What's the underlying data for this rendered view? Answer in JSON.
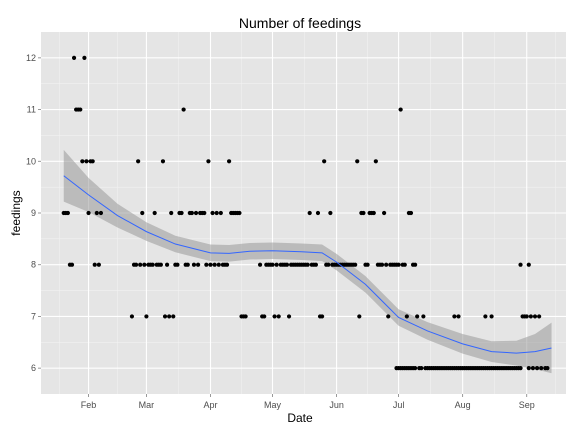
{
  "chart_data": {
    "type": "scatter",
    "title": "Number of feedings",
    "xlabel": "Date",
    "ylabel": "feedings",
    "x_type": "date",
    "xlim": [
      "2014-01-09",
      "2014-09-20"
    ],
    "ylim": [
      5.5,
      12.5
    ],
    "grid": true,
    "x_ticks": [
      {
        "date": "2014-02-01",
        "label": "Feb"
      },
      {
        "date": "2014-03-01",
        "label": "Mar"
      },
      {
        "date": "2014-04-01",
        "label": "Apr"
      },
      {
        "date": "2014-05-01",
        "label": "May"
      },
      {
        "date": "2014-06-01",
        "label": "Jun"
      },
      {
        "date": "2014-07-01",
        "label": "Jul"
      },
      {
        "date": "2014-08-01",
        "label": "Aug"
      },
      {
        "date": "2014-09-01",
        "label": "Sep"
      }
    ],
    "y_ticks": [
      {
        "value": 6,
        "label": "6"
      },
      {
        "value": 7,
        "label": "7"
      },
      {
        "value": 8,
        "label": "8"
      },
      {
        "value": 9,
        "label": "9"
      },
      {
        "value": 10,
        "label": "10"
      },
      {
        "value": 11,
        "label": "11"
      },
      {
        "value": 12,
        "label": "12"
      }
    ],
    "point_color": "#000000",
    "smooth_color": "#3366ff",
    "ribbon_color": "#999999",
    "points": [
      {
        "x": "2014-01-20",
        "y": 9
      },
      {
        "x": "2014-01-21",
        "y": 9
      },
      {
        "x": "2014-01-22",
        "y": 9
      },
      {
        "x": "2014-01-23",
        "y": 8
      },
      {
        "x": "2014-01-24",
        "y": 8
      },
      {
        "x": "2014-01-25",
        "y": 12
      },
      {
        "x": "2014-01-26",
        "y": 11
      },
      {
        "x": "2014-01-27",
        "y": 11
      },
      {
        "x": "2014-01-28",
        "y": 11
      },
      {
        "x": "2014-01-29",
        "y": 10
      },
      {
        "x": "2014-01-30",
        "y": 12
      },
      {
        "x": "2014-01-31",
        "y": 10
      },
      {
        "x": "2014-02-01",
        "y": 9
      },
      {
        "x": "2014-02-02",
        "y": 10
      },
      {
        "x": "2014-02-03",
        "y": 10
      },
      {
        "x": "2014-02-04",
        "y": 8
      },
      {
        "x": "2014-02-05",
        "y": 9
      },
      {
        "x": "2014-02-06",
        "y": 8
      },
      {
        "x": "2014-02-07",
        "y": 9
      },
      {
        "x": "2014-02-22",
        "y": 7
      },
      {
        "x": "2014-02-23",
        "y": 8
      },
      {
        "x": "2014-02-24",
        "y": 8
      },
      {
        "x": "2014-02-25",
        "y": 10
      },
      {
        "x": "2014-02-26",
        "y": 8
      },
      {
        "x": "2014-02-27",
        "y": 9
      },
      {
        "x": "2014-02-28",
        "y": 8
      },
      {
        "x": "2014-03-01",
        "y": 7
      },
      {
        "x": "2014-03-02",
        "y": 8
      },
      {
        "x": "2014-03-03",
        "y": 8
      },
      {
        "x": "2014-03-04",
        "y": 8
      },
      {
        "x": "2014-03-05",
        "y": 9
      },
      {
        "x": "2014-03-06",
        "y": 8
      },
      {
        "x": "2014-03-07",
        "y": 8
      },
      {
        "x": "2014-03-08",
        "y": 8
      },
      {
        "x": "2014-03-09",
        "y": 10
      },
      {
        "x": "2014-03-10",
        "y": 7
      },
      {
        "x": "2014-03-11",
        "y": 8
      },
      {
        "x": "2014-03-12",
        "y": 7
      },
      {
        "x": "2014-03-13",
        "y": 9
      },
      {
        "x": "2014-03-14",
        "y": 7
      },
      {
        "x": "2014-03-15",
        "y": 8
      },
      {
        "x": "2014-03-16",
        "y": 8
      },
      {
        "x": "2014-03-17",
        "y": 9
      },
      {
        "x": "2014-03-18",
        "y": 9
      },
      {
        "x": "2014-03-19",
        "y": 11
      },
      {
        "x": "2014-03-20",
        "y": 8
      },
      {
        "x": "2014-03-21",
        "y": 8
      },
      {
        "x": "2014-03-22",
        "y": 9
      },
      {
        "x": "2014-03-23",
        "y": 9
      },
      {
        "x": "2014-03-24",
        "y": 8
      },
      {
        "x": "2014-03-25",
        "y": 9
      },
      {
        "x": "2014-03-26",
        "y": 8
      },
      {
        "x": "2014-03-27",
        "y": 9
      },
      {
        "x": "2014-03-28",
        "y": 9
      },
      {
        "x": "2014-03-29",
        "y": 9
      },
      {
        "x": "2014-03-30",
        "y": 8
      },
      {
        "x": "2014-03-31",
        "y": 10
      },
      {
        "x": "2014-04-01",
        "y": 8
      },
      {
        "x": "2014-04-02",
        "y": 9
      },
      {
        "x": "2014-04-03",
        "y": 8
      },
      {
        "x": "2014-04-04",
        "y": 9
      },
      {
        "x": "2014-04-05",
        "y": 8
      },
      {
        "x": "2014-04-06",
        "y": 9
      },
      {
        "x": "2014-04-07",
        "y": 8
      },
      {
        "x": "2014-04-08",
        "y": 8
      },
      {
        "x": "2014-04-09",
        "y": 8
      },
      {
        "x": "2014-04-10",
        "y": 10
      },
      {
        "x": "2014-04-11",
        "y": 9
      },
      {
        "x": "2014-04-12",
        "y": 9
      },
      {
        "x": "2014-04-13",
        "y": 9
      },
      {
        "x": "2014-04-14",
        "y": 9
      },
      {
        "x": "2014-04-15",
        "y": 9
      },
      {
        "x": "2014-04-16",
        "y": 7
      },
      {
        "x": "2014-04-17",
        "y": 7
      },
      {
        "x": "2014-04-18",
        "y": 7
      },
      {
        "x": "2014-04-25",
        "y": 8
      },
      {
        "x": "2014-04-26",
        "y": 7
      },
      {
        "x": "2014-04-27",
        "y": 7
      },
      {
        "x": "2014-04-28",
        "y": 8
      },
      {
        "x": "2014-04-29",
        "y": 8
      },
      {
        "x": "2014-04-30",
        "y": 8
      },
      {
        "x": "2014-05-01",
        "y": 8
      },
      {
        "x": "2014-05-02",
        "y": 7
      },
      {
        "x": "2014-05-03",
        "y": 8
      },
      {
        "x": "2014-05-04",
        "y": 7
      },
      {
        "x": "2014-05-05",
        "y": 8
      },
      {
        "x": "2014-05-06",
        "y": 8
      },
      {
        "x": "2014-05-07",
        "y": 8
      },
      {
        "x": "2014-05-08",
        "y": 8
      },
      {
        "x": "2014-05-09",
        "y": 7
      },
      {
        "x": "2014-05-10",
        "y": 8
      },
      {
        "x": "2014-05-11",
        "y": 8
      },
      {
        "x": "2014-05-12",
        "y": 8
      },
      {
        "x": "2014-05-13",
        "y": 8
      },
      {
        "x": "2014-05-14",
        "y": 8
      },
      {
        "x": "2014-05-15",
        "y": 8
      },
      {
        "x": "2014-05-16",
        "y": 8
      },
      {
        "x": "2014-05-17",
        "y": 8
      },
      {
        "x": "2014-05-18",
        "y": 8
      },
      {
        "x": "2014-05-19",
        "y": 9
      },
      {
        "x": "2014-05-20",
        "y": 8
      },
      {
        "x": "2014-05-21",
        "y": 8
      },
      {
        "x": "2014-05-22",
        "y": 8
      },
      {
        "x": "2014-05-23",
        "y": 9
      },
      {
        "x": "2014-05-24",
        "y": 7
      },
      {
        "x": "2014-05-25",
        "y": 7
      },
      {
        "x": "2014-05-26",
        "y": 10
      },
      {
        "x": "2014-05-27",
        "y": 8
      },
      {
        "x": "2014-05-28",
        "y": 8
      },
      {
        "x": "2014-05-29",
        "y": 9
      },
      {
        "x": "2014-05-30",
        "y": 8
      },
      {
        "x": "2014-05-31",
        "y": 8
      },
      {
        "x": "2014-06-01",
        "y": 8
      },
      {
        "x": "2014-06-02",
        "y": 8
      },
      {
        "x": "2014-06-03",
        "y": 8
      },
      {
        "x": "2014-06-04",
        "y": 8
      },
      {
        "x": "2014-06-05",
        "y": 8
      },
      {
        "x": "2014-06-06",
        "y": 8
      },
      {
        "x": "2014-06-07",
        "y": 8
      },
      {
        "x": "2014-06-08",
        "y": 8
      },
      {
        "x": "2014-06-09",
        "y": 8
      },
      {
        "x": "2014-06-10",
        "y": 8
      },
      {
        "x": "2014-06-11",
        "y": 10
      },
      {
        "x": "2014-06-12",
        "y": 7
      },
      {
        "x": "2014-06-13",
        "y": 9
      },
      {
        "x": "2014-06-14",
        "y": 9
      },
      {
        "x": "2014-06-15",
        "y": 8
      },
      {
        "x": "2014-06-16",
        "y": 8
      },
      {
        "x": "2014-06-17",
        "y": 9
      },
      {
        "x": "2014-06-18",
        "y": 9
      },
      {
        "x": "2014-06-19",
        "y": 9
      },
      {
        "x": "2014-06-20",
        "y": 10
      },
      {
        "x": "2014-06-21",
        "y": 8
      },
      {
        "x": "2014-06-22",
        "y": 8
      },
      {
        "x": "2014-06-23",
        "y": 8
      },
      {
        "x": "2014-06-24",
        "y": 9
      },
      {
        "x": "2014-06-25",
        "y": 8
      },
      {
        "x": "2014-06-26",
        "y": 7
      },
      {
        "x": "2014-06-27",
        "y": 8
      },
      {
        "x": "2014-06-28",
        "y": 8
      },
      {
        "x": "2014-06-29",
        "y": 8
      },
      {
        "x": "2014-06-30",
        "y": 8
      },
      {
        "x": "2014-07-01",
        "y": 8
      },
      {
        "x": "2014-07-02",
        "y": 11
      },
      {
        "x": "2014-07-03",
        "y": 8
      },
      {
        "x": "2014-07-04",
        "y": 8
      },
      {
        "x": "2014-07-05",
        "y": 7
      },
      {
        "x": "2014-07-06",
        "y": 9
      },
      {
        "x": "2014-07-07",
        "y": 9
      },
      {
        "x": "2014-07-08",
        "y": 8
      },
      {
        "x": "2014-07-09",
        "y": 8
      },
      {
        "x": "2014-07-10",
        "y": 7
      },
      {
        "x": "2014-06-30",
        "y": 6
      },
      {
        "x": "2014-07-01",
        "y": 6
      },
      {
        "x": "2014-07-02",
        "y": 6
      },
      {
        "x": "2014-07-03",
        "y": 6
      },
      {
        "x": "2014-07-04",
        "y": 6
      },
      {
        "x": "2014-07-05",
        "y": 6
      },
      {
        "x": "2014-07-06",
        "y": 6
      },
      {
        "x": "2014-07-07",
        "y": 6
      },
      {
        "x": "2014-07-08",
        "y": 6
      },
      {
        "x": "2014-07-09",
        "y": 6
      },
      {
        "x": "2014-07-11",
        "y": 6
      },
      {
        "x": "2014-07-12",
        "y": 6
      },
      {
        "x": "2014-07-13",
        "y": 7
      },
      {
        "x": "2014-07-14",
        "y": 6
      },
      {
        "x": "2014-07-15",
        "y": 6
      },
      {
        "x": "2014-07-16",
        "y": 6
      },
      {
        "x": "2014-07-17",
        "y": 6
      },
      {
        "x": "2014-07-18",
        "y": 6
      },
      {
        "x": "2014-07-19",
        "y": 6
      },
      {
        "x": "2014-07-20",
        "y": 6
      },
      {
        "x": "2014-07-21",
        "y": 6
      },
      {
        "x": "2014-07-22",
        "y": 6
      },
      {
        "x": "2014-07-23",
        "y": 6
      },
      {
        "x": "2014-07-24",
        "y": 6
      },
      {
        "x": "2014-07-25",
        "y": 6
      },
      {
        "x": "2014-07-26",
        "y": 6
      },
      {
        "x": "2014-07-27",
        "y": 6
      },
      {
        "x": "2014-07-28",
        "y": 6
      },
      {
        "x": "2014-07-29",
        "y": 6
      },
      {
        "x": "2014-07-30",
        "y": 6
      },
      {
        "x": "2014-07-31",
        "y": 6
      },
      {
        "x": "2014-08-01",
        "y": 6
      },
      {
        "x": "2014-08-02",
        "y": 6
      },
      {
        "x": "2014-08-03",
        "y": 6
      },
      {
        "x": "2014-08-04",
        "y": 6
      },
      {
        "x": "2014-08-05",
        "y": 6
      },
      {
        "x": "2014-08-06",
        "y": 6
      },
      {
        "x": "2014-08-07",
        "y": 6
      },
      {
        "x": "2014-08-08",
        "y": 6
      },
      {
        "x": "2014-08-09",
        "y": 6
      },
      {
        "x": "2014-08-10",
        "y": 6
      },
      {
        "x": "2014-08-11",
        "y": 6
      },
      {
        "x": "2014-08-12",
        "y": 6
      },
      {
        "x": "2014-08-13",
        "y": 6
      },
      {
        "x": "2014-08-14",
        "y": 6
      },
      {
        "x": "2014-08-15",
        "y": 6
      },
      {
        "x": "2014-08-16",
        "y": 6
      },
      {
        "x": "2014-08-17",
        "y": 6
      },
      {
        "x": "2014-08-18",
        "y": 6
      },
      {
        "x": "2014-08-19",
        "y": 6
      },
      {
        "x": "2014-08-20",
        "y": 6
      },
      {
        "x": "2014-08-21",
        "y": 6
      },
      {
        "x": "2014-08-22",
        "y": 6
      },
      {
        "x": "2014-08-23",
        "y": 6
      },
      {
        "x": "2014-08-24",
        "y": 6
      },
      {
        "x": "2014-08-25",
        "y": 6
      },
      {
        "x": "2014-08-26",
        "y": 6
      },
      {
        "x": "2014-08-27",
        "y": 6
      },
      {
        "x": "2014-08-28",
        "y": 6
      },
      {
        "x": "2014-08-29",
        "y": 8
      },
      {
        "x": "2014-08-29",
        "y": 6
      },
      {
        "x": "2014-08-30",
        "y": 7
      },
      {
        "x": "2014-08-31",
        "y": 7
      },
      {
        "x": "2014-09-01",
        "y": 7
      },
      {
        "x": "2014-09-02",
        "y": 8
      },
      {
        "x": "2014-09-02",
        "y": 6
      },
      {
        "x": "2014-09-03",
        "y": 7
      },
      {
        "x": "2014-09-04",
        "y": 6
      },
      {
        "x": "2014-09-05",
        "y": 7
      },
      {
        "x": "2014-09-06",
        "y": 6
      },
      {
        "x": "2014-09-07",
        "y": 7
      },
      {
        "x": "2014-09-08",
        "y": 6
      },
      {
        "x": "2014-09-10",
        "y": 6
      },
      {
        "x": "2014-09-11",
        "y": 6
      },
      {
        "x": "2014-07-28",
        "y": 7
      },
      {
        "x": "2014-07-30",
        "y": 7
      },
      {
        "x": "2014-08-12",
        "y": 7
      },
      {
        "x": "2014-08-15",
        "y": 7
      }
    ],
    "smooth": {
      "x": [
        "2014-01-20",
        "2014-02-01",
        "2014-02-15",
        "2014-03-01",
        "2014-03-15",
        "2014-04-01",
        "2014-04-10",
        "2014-04-20",
        "2014-05-01",
        "2014-05-15",
        "2014-05-25",
        "2014-06-01",
        "2014-06-15",
        "2014-07-01",
        "2014-07-15",
        "2014-08-01",
        "2014-08-15",
        "2014-08-27",
        "2014-09-05",
        "2014-09-13"
      ],
      "y": [
        9.72,
        9.35,
        8.95,
        8.64,
        8.4,
        8.23,
        8.22,
        8.26,
        8.27,
        8.25,
        8.23,
        8.05,
        7.62,
        6.98,
        6.72,
        6.47,
        6.32,
        6.29,
        6.32,
        6.39
      ],
      "lower": [
        9.22,
        9.02,
        8.72,
        8.46,
        8.24,
        8.07,
        8.06,
        8.1,
        8.11,
        8.09,
        8.07,
        7.89,
        7.46,
        6.82,
        6.55,
        6.28,
        6.12,
        6.05,
        5.98,
        5.9
      ],
      "upper": [
        10.22,
        9.68,
        9.18,
        8.82,
        8.56,
        8.39,
        8.38,
        8.42,
        8.43,
        8.41,
        8.39,
        8.21,
        7.78,
        7.14,
        6.89,
        6.66,
        6.52,
        6.53,
        6.66,
        6.88
      ]
    }
  }
}
